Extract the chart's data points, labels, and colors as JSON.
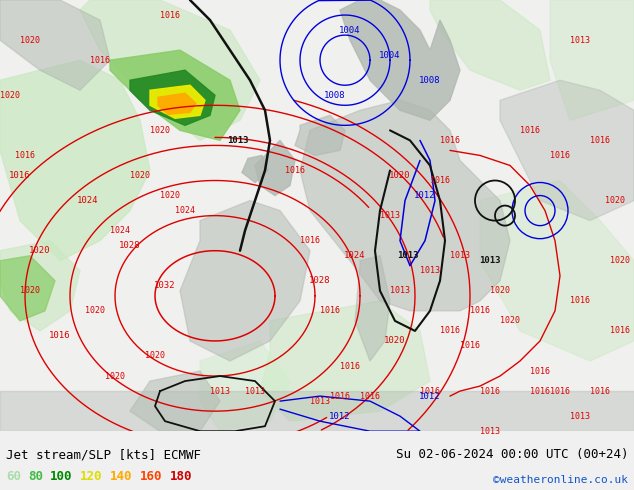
{
  "title_left": "Jet stream/SLP [kts] ECMWF",
  "title_right": "Su 02-06-2024 00:00 UTC (00+24)",
  "credit": "©weatheronline.co.uk",
  "legend_values": [
    "60",
    "80",
    "100",
    "120",
    "140",
    "160",
    "180"
  ],
  "legend_colors": [
    "#aaddaa",
    "#44bb44",
    "#008800",
    "#dddd00",
    "#ffaa00",
    "#ff4400",
    "#cc0000"
  ],
  "bg_color": "#f0f0f0",
  "map_bg": "#f0f0f0",
  "bottom_bar_color": "#c8e8c8",
  "title_color": "#000000",
  "credit_color": "#1155cc",
  "figsize": [
    6.34,
    4.9
  ],
  "dpi": 100,
  "land_color": "#c8ddc8",
  "sea_color": "#ddeedd",
  "gray_land_color": "#b8b8b8"
}
